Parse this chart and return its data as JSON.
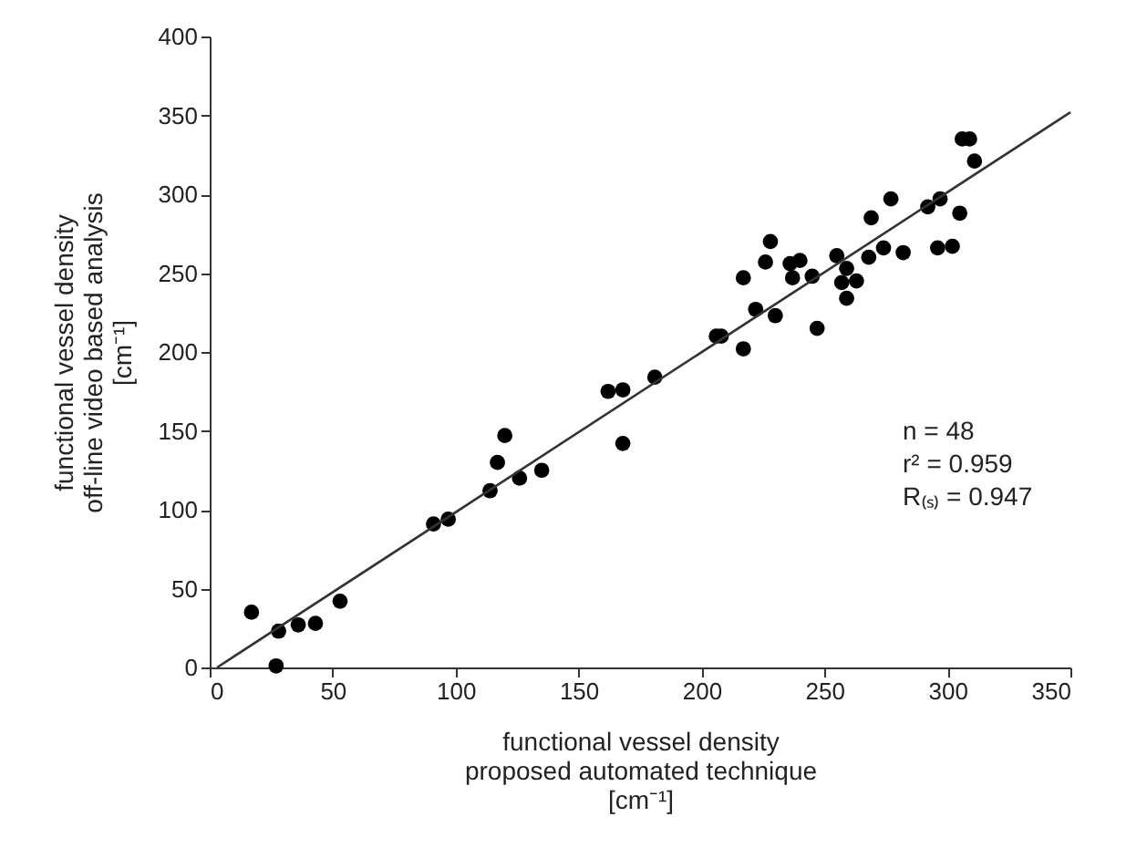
{
  "chart_data": {
    "type": "scatter",
    "xlabel": "functional vessel density\nproposed automated technique\n[cm⁻¹]",
    "ylabel": "functional vessel density\noff-line video based analysis\n[cm⁻¹]",
    "annotations": [
      "n = 48",
      "r² = 0.959",
      "R₍ₛ₎ = 0.947"
    ],
    "xlim": [
      0,
      350
    ],
    "xticks": [
      0,
      50,
      100,
      150,
      200,
      250,
      300,
      350
    ],
    "ylim": [
      0,
      400
    ],
    "yticks": [
      0,
      50,
      100,
      150,
      200,
      250,
      300,
      350,
      400
    ],
    "grid": false,
    "series": [
      {
        "color": "#000000",
        "marker": "circle",
        "x": [
          17,
          28,
          27,
          36,
          43,
          53,
          91,
          97,
          114,
          117,
          120,
          126,
          135,
          162,
          168,
          168,
          181,
          206,
          208,
          217,
          217,
          222,
          226,
          228,
          230,
          236,
          240,
          237,
          245,
          247,
          255,
          257,
          259,
          259,
          263,
          268,
          269,
          274,
          277,
          282,
          292,
          297,
          296,
          302,
          305,
          306,
          309,
          311
        ],
        "values": [
          35,
          23,
          1,
          27,
          28,
          42,
          91,
          94,
          112,
          130,
          147,
          120,
          125,
          175,
          176,
          142,
          184,
          210,
          210,
          202,
          247,
          227,
          257,
          270,
          223,
          256,
          258,
          247,
          248,
          215,
          261,
          244,
          253,
          234,
          245,
          260,
          285,
          266,
          297,
          263,
          292,
          297,
          266,
          267,
          288,
          335,
          335,
          321
        ]
      },
      {
        "type": "line",
        "color": "#333333",
        "x": [
          3,
          350
        ],
        "values": [
          0,
          352
        ]
      }
    ]
  }
}
